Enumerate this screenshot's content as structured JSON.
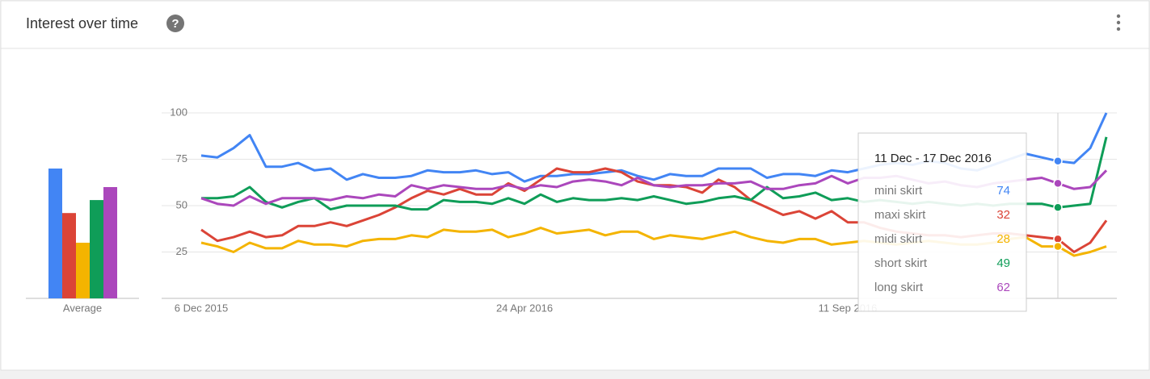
{
  "header": {
    "title": "Interest over time",
    "help": "?"
  },
  "chart_data": {
    "type": "line",
    "categories": [
      "6 Dec 2015",
      null,
      null,
      null,
      null,
      null,
      null,
      null,
      null,
      null,
      null,
      null,
      null,
      null,
      null,
      null,
      null,
      null,
      null,
      null,
      "24 Apr 2016",
      null,
      null,
      null,
      null,
      null,
      null,
      null,
      null,
      null,
      null,
      null,
      null,
      null,
      null,
      null,
      null,
      null,
      null,
      null,
      "11 Sep 2016",
      null,
      null,
      null,
      null,
      null,
      null,
      null,
      null,
      null,
      null,
      null,
      null,
      null,
      null,
      null,
      null
    ],
    "series": [
      {
        "name": "mini skirt",
        "color": "#4285f4",
        "average": 70,
        "values": [
          77,
          76,
          81,
          88,
          71,
          71,
          73,
          69,
          70,
          64,
          67,
          65,
          65,
          66,
          69,
          68,
          68,
          69,
          67,
          68,
          63,
          66,
          66,
          67,
          67,
          68,
          69,
          66,
          64,
          67,
          66,
          66,
          70,
          70,
          70,
          65,
          67,
          67,
          66,
          69,
          68,
          70,
          72,
          73,
          72,
          74,
          73,
          70,
          69,
          72,
          75,
          78,
          76,
          74,
          73,
          81,
          100
        ]
      },
      {
        "name": "maxi skirt",
        "color": "#db4437",
        "average": 46,
        "values": [
          37,
          31,
          33,
          36,
          33,
          34,
          39,
          39,
          41,
          39,
          42,
          45,
          49,
          54,
          58,
          56,
          59,
          56,
          56,
          62,
          58,
          64,
          70,
          68,
          68,
          70,
          68,
          63,
          61,
          61,
          60,
          57,
          64,
          60,
          53,
          49,
          45,
          47,
          43,
          47,
          41,
          41,
          38,
          36,
          35,
          34,
          34,
          33,
          34,
          35,
          35,
          34,
          33,
          32,
          25,
          30,
          42
        ]
      },
      {
        "name": "midi skirt",
        "color": "#f4b400",
        "average": 30,
        "values": [
          30,
          28,
          25,
          30,
          27,
          27,
          31,
          29,
          29,
          28,
          31,
          32,
          32,
          34,
          33,
          37,
          36,
          36,
          37,
          33,
          35,
          38,
          35,
          36,
          37,
          34,
          36,
          36,
          32,
          34,
          33,
          32,
          34,
          36,
          33,
          31,
          30,
          32,
          32,
          29,
          30,
          31,
          30,
          29,
          30,
          31,
          30,
          29,
          29,
          30,
          32,
          33,
          28,
          28,
          23,
          25,
          28
        ]
      },
      {
        "name": "short skirt",
        "color": "#0f9d58",
        "average": 53,
        "values": [
          54,
          54,
          55,
          60,
          52,
          49,
          52,
          54,
          48,
          50,
          50,
          50,
          50,
          48,
          48,
          53,
          52,
          52,
          51,
          54,
          51,
          56,
          52,
          54,
          53,
          53,
          54,
          53,
          55,
          53,
          51,
          52,
          54,
          55,
          53,
          60,
          54,
          55,
          57,
          53,
          54,
          52,
          53,
          52,
          51,
          52,
          51,
          50,
          51,
          50,
          51,
          51,
          51,
          49,
          50,
          51,
          87
        ]
      },
      {
        "name": "long skirt",
        "color": "#ab47bc",
        "average": 60,
        "values": [
          54,
          51,
          50,
          55,
          51,
          54,
          54,
          54,
          53,
          55,
          54,
          56,
          55,
          61,
          59,
          61,
          60,
          59,
          59,
          61,
          59,
          61,
          60,
          63,
          64,
          63,
          61,
          65,
          61,
          60,
          61,
          61,
          62,
          62,
          63,
          59,
          59,
          61,
          62,
          66,
          62,
          65,
          65,
          66,
          64,
          62,
          63,
          61,
          60,
          62,
          63,
          64,
          65,
          62,
          59,
          60,
          69
        ]
      }
    ],
    "average_label": "Average",
    "ylim": [
      0,
      100
    ],
    "yticks": [
      25,
      50,
      75,
      100
    ],
    "grid": true,
    "tooltip": {
      "title": "11 Dec - 17 Dec 2016",
      "highlight_index": 53
    }
  }
}
